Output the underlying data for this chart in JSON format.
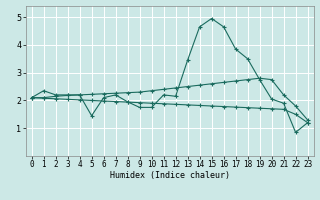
{
  "title": "",
  "xlabel": "Humidex (Indice chaleur)",
  "bg_color": "#cce8e6",
  "line_color": "#1a6b5e",
  "grid_color": "#ffffff",
  "xlim": [
    -0.5,
    23.5
  ],
  "ylim": [
    0,
    5.4
  ],
  "xticks": [
    0,
    1,
    2,
    3,
    4,
    5,
    6,
    7,
    8,
    9,
    10,
    11,
    12,
    13,
    14,
    15,
    16,
    17,
    18,
    19,
    20,
    21,
    22,
    23
  ],
  "yticks": [
    1,
    2,
    3,
    4,
    5
  ],
  "line1_x": [
    0,
    1,
    2,
    3,
    4,
    5,
    6,
    7,
    8,
    9,
    10,
    11,
    12,
    13,
    14,
    15,
    16,
    17,
    18,
    19,
    20,
    21,
    22,
    23
  ],
  "line1_y": [
    2.1,
    2.35,
    2.2,
    2.2,
    2.2,
    1.45,
    2.1,
    2.2,
    1.95,
    1.75,
    1.75,
    2.2,
    2.15,
    3.45,
    4.65,
    4.95,
    4.65,
    3.85,
    3.5,
    2.75,
    2.05,
    1.9,
    0.85,
    1.2
  ],
  "line2_x": [
    0,
    1,
    2,
    3,
    4,
    5,
    6,
    7,
    8,
    9,
    10,
    11,
    12,
    13,
    14,
    15,
    16,
    17,
    18,
    19,
    20,
    21,
    22,
    23
  ],
  "line2_y": [
    2.1,
    2.1,
    2.15,
    2.18,
    2.2,
    2.22,
    2.24,
    2.26,
    2.28,
    2.3,
    2.35,
    2.4,
    2.45,
    2.5,
    2.55,
    2.6,
    2.65,
    2.7,
    2.75,
    2.8,
    2.75,
    2.2,
    1.8,
    1.3
  ],
  "line3_x": [
    0,
    1,
    2,
    3,
    4,
    5,
    6,
    7,
    8,
    9,
    10,
    11,
    12,
    13,
    14,
    15,
    16,
    17,
    18,
    19,
    20,
    21,
    22,
    23
  ],
  "line3_y": [
    2.1,
    2.08,
    2.06,
    2.04,
    2.02,
    2.0,
    1.98,
    1.96,
    1.94,
    1.92,
    1.9,
    1.88,
    1.86,
    1.84,
    1.82,
    1.8,
    1.78,
    1.76,
    1.74,
    1.72,
    1.7,
    1.68,
    1.5,
    1.2
  ],
  "xlabel_fontsize": 6,
  "tick_fontsize": 5.5,
  "linewidth": 0.8,
  "markersize": 3.5
}
